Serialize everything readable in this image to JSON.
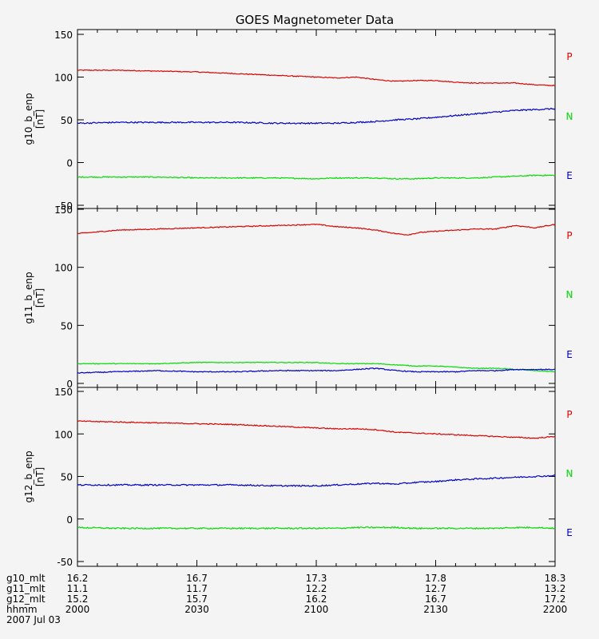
{
  "title": "GOES Magnetometer Data",
  "colors": {
    "P": "#dd0000",
    "N": "#00dd00",
    "E": "#0000cc",
    "axis": "#000000"
  },
  "legend": [
    "P",
    "N",
    "E"
  ],
  "footer": {
    "rows": [
      {
        "label": "g10_mlt",
        "values": [
          "16.2",
          "16.7",
          "17.3",
          "17.8",
          "18.3"
        ]
      },
      {
        "label": "g11_mlt",
        "values": [
          "11.1",
          "11.7",
          "12.2",
          "12.7",
          "13.2"
        ]
      },
      {
        "label": "g12_mlt",
        "values": [
          "15.2",
          "15.7",
          "16.2",
          "16.7",
          "17.2"
        ]
      },
      {
        "label": "hhmm",
        "values": [
          "2000",
          "2030",
          "2100",
          "2130",
          "2200"
        ]
      }
    ],
    "date": "2007 Jul 03"
  },
  "chart_data": [
    {
      "type": "line",
      "ylabel": "g10_b_enp",
      "units": "[nT]",
      "xlim": [
        0,
        120
      ],
      "ylim": [
        -50,
        150
      ],
      "yticks": [
        -50,
        0,
        50,
        100,
        150
      ],
      "xticks": [
        0,
        30,
        60,
        90,
        120
      ],
      "series": [
        {
          "name": "P",
          "x": [
            0,
            10,
            20,
            30,
            40,
            50,
            60,
            65,
            70,
            75,
            80,
            85,
            90,
            95,
            100,
            105,
            110,
            115,
            120
          ],
          "y": [
            108,
            108,
            107,
            106,
            104,
            102,
            100,
            99,
            100,
            97,
            95,
            96,
            96,
            94,
            93,
            93,
            93,
            91,
            90
          ],
          "noise": 0.5
        },
        {
          "name": "N",
          "x": [
            0,
            10,
            20,
            30,
            40,
            50,
            60,
            65,
            70,
            75,
            80,
            85,
            90,
            95,
            100,
            105,
            110,
            115,
            120
          ],
          "y": [
            -17,
            -17,
            -17,
            -18,
            -18,
            -18,
            -19,
            -18,
            -18,
            -18,
            -19,
            -19,
            -18,
            -18,
            -18,
            -17,
            -16,
            -15,
            -15
          ],
          "noise": 0.6
        },
        {
          "name": "E",
          "x": [
            0,
            10,
            20,
            30,
            40,
            50,
            60,
            65,
            70,
            75,
            80,
            85,
            90,
            95,
            100,
            105,
            110,
            115,
            120
          ],
          "y": [
            46,
            47,
            47,
            47,
            47,
            46,
            46,
            46,
            47,
            48,
            50,
            51,
            53,
            55,
            57,
            59,
            61,
            62,
            63
          ],
          "noise": 0.8
        }
      ]
    },
    {
      "type": "line",
      "ylabel": "g11_b_enp",
      "units": "[nT]",
      "xlim": [
        0,
        120
      ],
      "ylim": [
        0,
        150
      ],
      "yticks": [
        0,
        50,
        100,
        150
      ],
      "xticks": [
        0,
        30,
        60,
        90,
        120
      ],
      "series": [
        {
          "name": "P",
          "x": [
            0,
            10,
            20,
            30,
            40,
            50,
            60,
            65,
            70,
            75,
            80,
            83,
            86,
            90,
            95,
            100,
            105,
            110,
            115,
            120
          ],
          "y": [
            129,
            132,
            133,
            134,
            135,
            136,
            137,
            135,
            134,
            132,
            129,
            128,
            130,
            131,
            132,
            133,
            133,
            136,
            134,
            137
          ],
          "noise": 0.4
        },
        {
          "name": "N",
          "x": [
            0,
            10,
            20,
            30,
            40,
            50,
            60,
            65,
            70,
            75,
            80,
            85,
            90,
            95,
            100,
            105,
            110,
            115,
            120
          ],
          "y": [
            17,
            17,
            17,
            18,
            18,
            18,
            18,
            17,
            17,
            17,
            16,
            15,
            15,
            14,
            13,
            13,
            12,
            11,
            10
          ],
          "noise": 0.3
        },
        {
          "name": "E",
          "x": [
            0,
            10,
            20,
            30,
            40,
            50,
            60,
            65,
            70,
            75,
            80,
            85,
            90,
            95,
            100,
            105,
            110,
            115,
            120
          ],
          "y": [
            9,
            10,
            11,
            10,
            10,
            11,
            11,
            11,
            12,
            13,
            11,
            10,
            10,
            10,
            11,
            11,
            12,
            12,
            12
          ],
          "noise": 0.4
        }
      ]
    },
    {
      "type": "line",
      "ylabel": "g12_b_enp",
      "units": "[nT]",
      "xlim": [
        0,
        120
      ],
      "ylim": [
        -50,
        150
      ],
      "yticks": [
        -50,
        0,
        50,
        100,
        150
      ],
      "xticks": [
        0,
        30,
        60,
        90,
        120
      ],
      "series": [
        {
          "name": "P",
          "x": [
            0,
            10,
            20,
            30,
            40,
            50,
            60,
            65,
            70,
            75,
            80,
            85,
            90,
            95,
            100,
            105,
            110,
            115,
            120
          ],
          "y": [
            115,
            114,
            113,
            112,
            111,
            109,
            107,
            106,
            106,
            105,
            102,
            101,
            100,
            99,
            98,
            97,
            96,
            95,
            97
          ],
          "noise": 0.6
        },
        {
          "name": "N",
          "x": [
            0,
            10,
            20,
            30,
            40,
            50,
            60,
            65,
            70,
            75,
            80,
            85,
            90,
            95,
            100,
            105,
            110,
            115,
            120
          ],
          "y": [
            -10,
            -11,
            -11,
            -11,
            -11,
            -11,
            -11,
            -11,
            -10,
            -10,
            -10,
            -11,
            -11,
            -11,
            -11,
            -11,
            -10,
            -10,
            -11
          ],
          "noise": 0.8
        },
        {
          "name": "E",
          "x": [
            0,
            10,
            20,
            30,
            40,
            50,
            60,
            65,
            70,
            75,
            80,
            85,
            90,
            95,
            100,
            105,
            110,
            115,
            120
          ],
          "y": [
            40,
            40,
            40,
            40,
            40,
            39,
            39,
            40,
            41,
            42,
            41,
            43,
            44,
            46,
            47,
            48,
            49,
            50,
            51
          ],
          "noise": 0.8
        }
      ]
    }
  ]
}
